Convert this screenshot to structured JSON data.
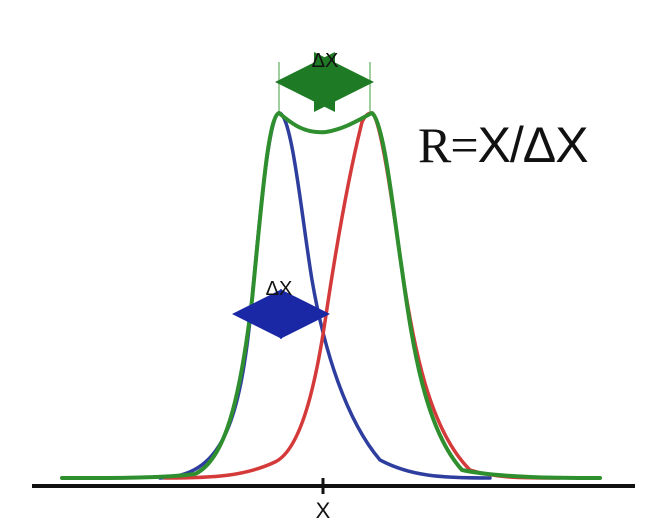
{
  "formula": {
    "lhs": "R=",
    "rhs": "X/ΔX"
  },
  "labels": {
    "top_delta": "ΔX",
    "mid_delta": "ΔX",
    "x_tick": "X"
  },
  "colors": {
    "blue_curve": "#2e3e9e",
    "red_curve": "#d53a3a",
    "green_curve": "#2f8f2f",
    "top_arrow": "#1f7a25",
    "mid_arrow": "#1a28a6",
    "baseline": "#111111",
    "guides": "#9fcf9f",
    "text": "#111111"
  },
  "components": [
    {
      "name": "blue-peak",
      "color_key": "blue_curve"
    },
    {
      "name": "red-peak",
      "color_key": "red_curve"
    },
    {
      "name": "green-envelope",
      "color_key": "green_curve"
    }
  ]
}
